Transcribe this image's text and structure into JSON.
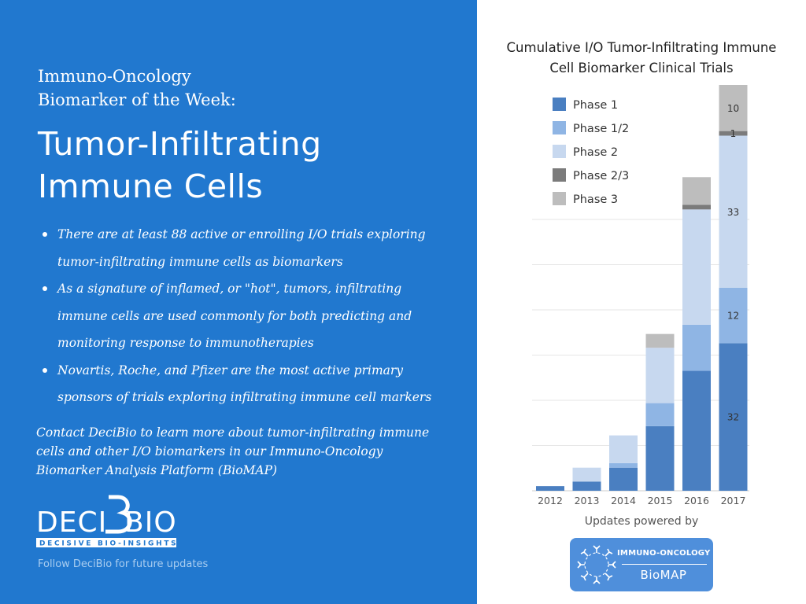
{
  "left": {
    "kicker": [
      "Immuno-Oncology",
      "Biomarker of the Week:"
    ],
    "headline": [
      "Tumor-Infiltrating",
      "Immune Cells"
    ],
    "bullets": [
      [
        "There are at least 88 active or enrolling I/O trials exploring",
        "tumor-infiltrating immune cells as biomarkers"
      ],
      [
        "As a signature of inflamed, or \"hot\", tumors, infiltrating",
        "immune cells are used commonly for both predicting and",
        "monitoring response to immunotherapies"
      ],
      [
        "Novartis, Roche, and Pfizer are the most active primary",
        "sponsors of trials exploring infiltrating immune cell markers"
      ]
    ],
    "contact": [
      "Contact DeciBio to learn more about tumor-infiltrating immune",
      "cells and other I/O biomarkers in our Immuno-Oncology",
      "Biomarker Analysis Platform (BioMAP)"
    ],
    "logo": {
      "word_left": "DECI",
      "word_right": "BIO",
      "tagline": "DECISIVE BIO-INSIGHTS",
      "icon": "decibio-logo"
    },
    "follow": "Follow DeciBio for future updates"
  },
  "colors": {
    "panel": "#2178cf",
    "phase1": "#4a7fc1",
    "phase12": "#8fb5e4",
    "phase2": "#c7d8ef",
    "phase23": "#7b7b7b",
    "phase3": "#bdbdbd"
  },
  "chart_data": {
    "type": "bar",
    "stacked": true,
    "title": [
      "Cumulative I/O Tumor-Infiltrating Immune",
      "Cell Biomarker Clinical Trials"
    ],
    "categories": [
      "2012",
      "2013",
      "2014",
      "2015",
      "2016",
      "2017"
    ],
    "series": [
      {
        "name": "Phase 1",
        "values": [
          1,
          2,
          5,
          14,
          26,
          32
        ],
        "color": "#4a7fc1"
      },
      {
        "name": "Phase 1/2",
        "values": [
          0,
          0,
          1,
          5,
          10,
          12
        ],
        "color": "#8fb5e4"
      },
      {
        "name": "Phase 2",
        "values": [
          0,
          3,
          6,
          12,
          25,
          33
        ],
        "color": "#c7d8ef"
      },
      {
        "name": "Phase 2/3",
        "values": [
          0,
          0,
          0,
          0,
          1,
          1
        ],
        "color": "#7b7b7b"
      },
      {
        "name": "Phase 3",
        "values": [
          0,
          0,
          0,
          3,
          6,
          10
        ],
        "color": "#bdbdbd"
      }
    ],
    "data_labels": {
      "2017": {
        "Phase 1": "32",
        "Phase 1/2": "12",
        "Phase 2": "33",
        "Phase 2/3": "1",
        "Phase 3": "10"
      }
    },
    "ylim": [
      0,
      88
    ],
    "grid": true,
    "legend_position": "top-left"
  },
  "footer": {
    "updates_label": "Updates powered by",
    "badge_top": "IMMUNO-ONCOLOGY",
    "badge_bottom": "BioMAP",
    "badge_icon": "antibody-ring-icon"
  }
}
